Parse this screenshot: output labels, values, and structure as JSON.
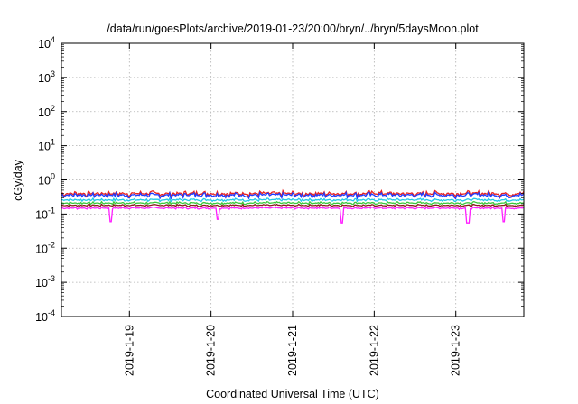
{
  "chart_data": {
    "type": "line",
    "title": "/data/run/goesPlots/archive/2019-01-23/20:00/bryn/../bryn/5daysMoon.plot",
    "xlabel": "Coordinated Universal Time (UTC)",
    "ylabel": "cGy/day",
    "yscale": "log",
    "grid": true,
    "x_range": [
      "2019-01-18T04:00",
      "2019-01-23T20:00"
    ],
    "ylim": [
      0.0001,
      10000
    ],
    "x_tick_labels": [
      "2019-1-19",
      "2019-1-20",
      "2019-1-21",
      "2019-1-22",
      "2019-1-23"
    ],
    "x_ticks": [
      "2019-01-19T00:00",
      "2019-01-20T00:00",
      "2019-01-21T00:00",
      "2019-01-22T00:00",
      "2019-01-23T00:00"
    ],
    "y_ticks": [
      {
        "value": 0.0001,
        "base": "10",
        "exp": "-4"
      },
      {
        "value": 0.001,
        "base": "10",
        "exp": "-3"
      },
      {
        "value": 0.01,
        "base": "10",
        "exp": "-2"
      },
      {
        "value": 0.1,
        "base": "10",
        "exp": "-1"
      },
      {
        "value": 1,
        "base": "10",
        "exp": "0"
      },
      {
        "value": 10,
        "base": "10",
        "exp": "1"
      },
      {
        "value": 100,
        "base": "10",
        "exp": "2"
      },
      {
        "value": 1000,
        "base": "10",
        "exp": "3"
      },
      {
        "value": 10000,
        "base": "10",
        "exp": "4"
      }
    ],
    "series": [
      {
        "color": "#e8211f",
        "level": 0.4,
        "spread": 0.22
      },
      {
        "color": "#1f3cff",
        "level": 0.36,
        "spread": 0.22
      },
      {
        "color": "#22c8e8",
        "level": 0.26,
        "spread": 0.12
      },
      {
        "color": "#3cc83c",
        "level": 0.21,
        "spread": 0.1
      },
      {
        "color": "#8b1a1a",
        "level": 0.18,
        "spread": 0.08
      },
      {
        "color": "#ff20ff",
        "level": 0.15,
        "spread": 0.08
      }
    ],
    "dips": [
      {
        "t": "2019-01-18T18:30",
        "value": 0.06
      },
      {
        "t": "2019-01-20T02:00",
        "value": 0.07
      },
      {
        "t": "2019-01-21T14:30",
        "value": 0.055
      },
      {
        "t": "2019-01-23T03:30",
        "value": 0.055
      },
      {
        "t": "2019-01-23T14:00",
        "value": 0.06
      }
    ]
  }
}
